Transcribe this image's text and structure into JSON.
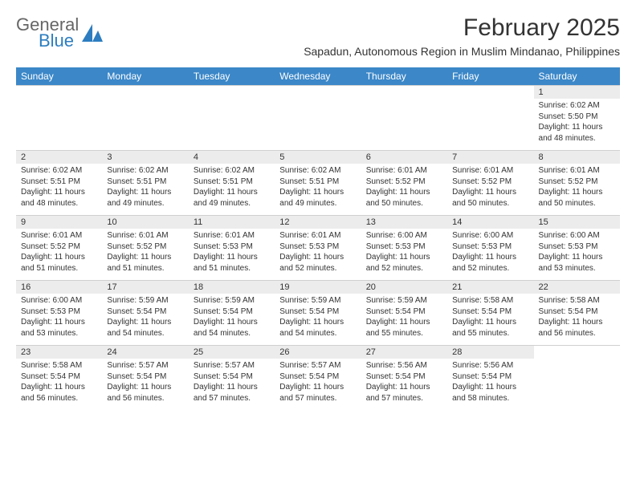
{
  "logo": {
    "general": "General",
    "blue": "Blue",
    "triangle_color": "#2d7dc0"
  },
  "title": "February 2025",
  "subtitle": "Sapadun, Autonomous Region in Muslim Mindanao, Philippines",
  "colors": {
    "header_bg": "#3b87c8",
    "header_text": "#ffffff",
    "daynum_bg": "#ececec",
    "text": "#333333",
    "border": "#d0d0d0"
  },
  "day_names": [
    "Sunday",
    "Monday",
    "Tuesday",
    "Wednesday",
    "Thursday",
    "Friday",
    "Saturday"
  ],
  "weeks": [
    {
      "nums": [
        "",
        "",
        "",
        "",
        "",
        "",
        "1"
      ],
      "details": [
        "",
        "",
        "",
        "",
        "",
        "",
        "Sunrise: 6:02 AM\nSunset: 5:50 PM\nDaylight: 11 hours and 48 minutes."
      ]
    },
    {
      "nums": [
        "2",
        "3",
        "4",
        "5",
        "6",
        "7",
        "8"
      ],
      "details": [
        "Sunrise: 6:02 AM\nSunset: 5:51 PM\nDaylight: 11 hours and 48 minutes.",
        "Sunrise: 6:02 AM\nSunset: 5:51 PM\nDaylight: 11 hours and 49 minutes.",
        "Sunrise: 6:02 AM\nSunset: 5:51 PM\nDaylight: 11 hours and 49 minutes.",
        "Sunrise: 6:02 AM\nSunset: 5:51 PM\nDaylight: 11 hours and 49 minutes.",
        "Sunrise: 6:01 AM\nSunset: 5:52 PM\nDaylight: 11 hours and 50 minutes.",
        "Sunrise: 6:01 AM\nSunset: 5:52 PM\nDaylight: 11 hours and 50 minutes.",
        "Sunrise: 6:01 AM\nSunset: 5:52 PM\nDaylight: 11 hours and 50 minutes."
      ]
    },
    {
      "nums": [
        "9",
        "10",
        "11",
        "12",
        "13",
        "14",
        "15"
      ],
      "details": [
        "Sunrise: 6:01 AM\nSunset: 5:52 PM\nDaylight: 11 hours and 51 minutes.",
        "Sunrise: 6:01 AM\nSunset: 5:52 PM\nDaylight: 11 hours and 51 minutes.",
        "Sunrise: 6:01 AM\nSunset: 5:53 PM\nDaylight: 11 hours and 51 minutes.",
        "Sunrise: 6:01 AM\nSunset: 5:53 PM\nDaylight: 11 hours and 52 minutes.",
        "Sunrise: 6:00 AM\nSunset: 5:53 PM\nDaylight: 11 hours and 52 minutes.",
        "Sunrise: 6:00 AM\nSunset: 5:53 PM\nDaylight: 11 hours and 52 minutes.",
        "Sunrise: 6:00 AM\nSunset: 5:53 PM\nDaylight: 11 hours and 53 minutes."
      ]
    },
    {
      "nums": [
        "16",
        "17",
        "18",
        "19",
        "20",
        "21",
        "22"
      ],
      "details": [
        "Sunrise: 6:00 AM\nSunset: 5:53 PM\nDaylight: 11 hours and 53 minutes.",
        "Sunrise: 5:59 AM\nSunset: 5:54 PM\nDaylight: 11 hours and 54 minutes.",
        "Sunrise: 5:59 AM\nSunset: 5:54 PM\nDaylight: 11 hours and 54 minutes.",
        "Sunrise: 5:59 AM\nSunset: 5:54 PM\nDaylight: 11 hours and 54 minutes.",
        "Sunrise: 5:59 AM\nSunset: 5:54 PM\nDaylight: 11 hours and 55 minutes.",
        "Sunrise: 5:58 AM\nSunset: 5:54 PM\nDaylight: 11 hours and 55 minutes.",
        "Sunrise: 5:58 AM\nSunset: 5:54 PM\nDaylight: 11 hours and 56 minutes."
      ]
    },
    {
      "nums": [
        "23",
        "24",
        "25",
        "26",
        "27",
        "28",
        ""
      ],
      "details": [
        "Sunrise: 5:58 AM\nSunset: 5:54 PM\nDaylight: 11 hours and 56 minutes.",
        "Sunrise: 5:57 AM\nSunset: 5:54 PM\nDaylight: 11 hours and 56 minutes.",
        "Sunrise: 5:57 AM\nSunset: 5:54 PM\nDaylight: 11 hours and 57 minutes.",
        "Sunrise: 5:57 AM\nSunset: 5:54 PM\nDaylight: 11 hours and 57 minutes.",
        "Sunrise: 5:56 AM\nSunset: 5:54 PM\nDaylight: 11 hours and 57 minutes.",
        "Sunrise: 5:56 AM\nSunset: 5:54 PM\nDaylight: 11 hours and 58 minutes.",
        ""
      ]
    }
  ]
}
